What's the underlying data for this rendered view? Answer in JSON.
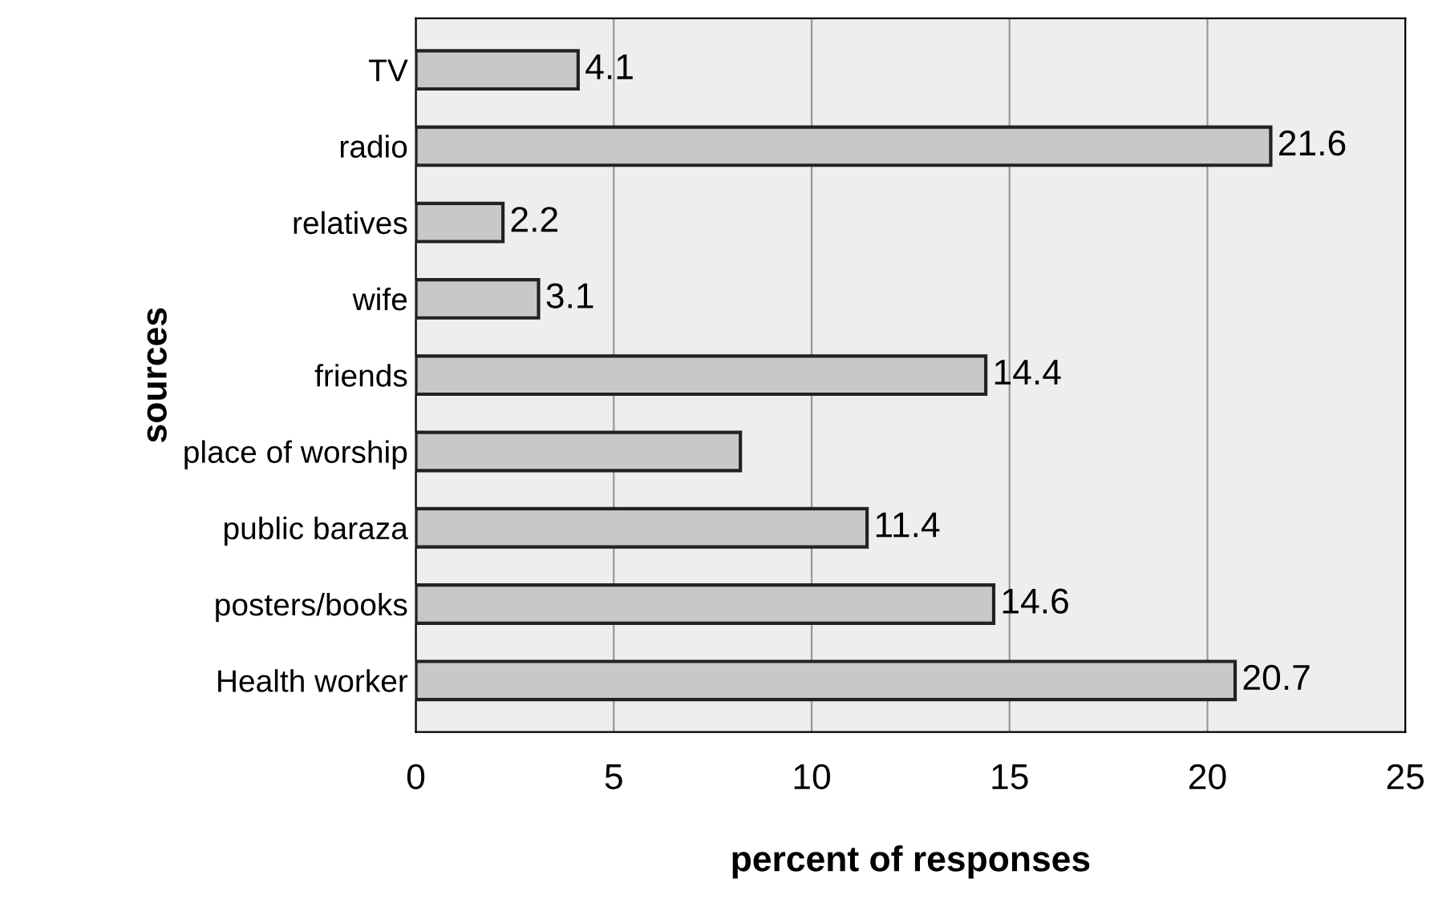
{
  "chart_data": {
    "type": "bar",
    "orientation": "horizontal",
    "xlabel": "percent of responses",
    "ylabel": "sources",
    "categories": [
      "TV",
      "radio",
      "relatives",
      "wife",
      "friends",
      "place of worship",
      "public baraza",
      "posters/books",
      "Health worker"
    ],
    "values": [
      4.1,
      21.6,
      2.2,
      3.1,
      14.4,
      8.2,
      11.4,
      14.6,
      20.7
    ],
    "value_labels": [
      "4.1",
      "21.6",
      "2.2",
      "3.1",
      "14.4",
      null,
      "11.4",
      "14.6",
      "20.7"
    ],
    "color": "#c8c8c8",
    "xlim": [
      0,
      25
    ],
    "xticks": [
      0,
      5,
      10,
      15,
      20,
      25
    ],
    "grid": "x",
    "legend": false
  }
}
